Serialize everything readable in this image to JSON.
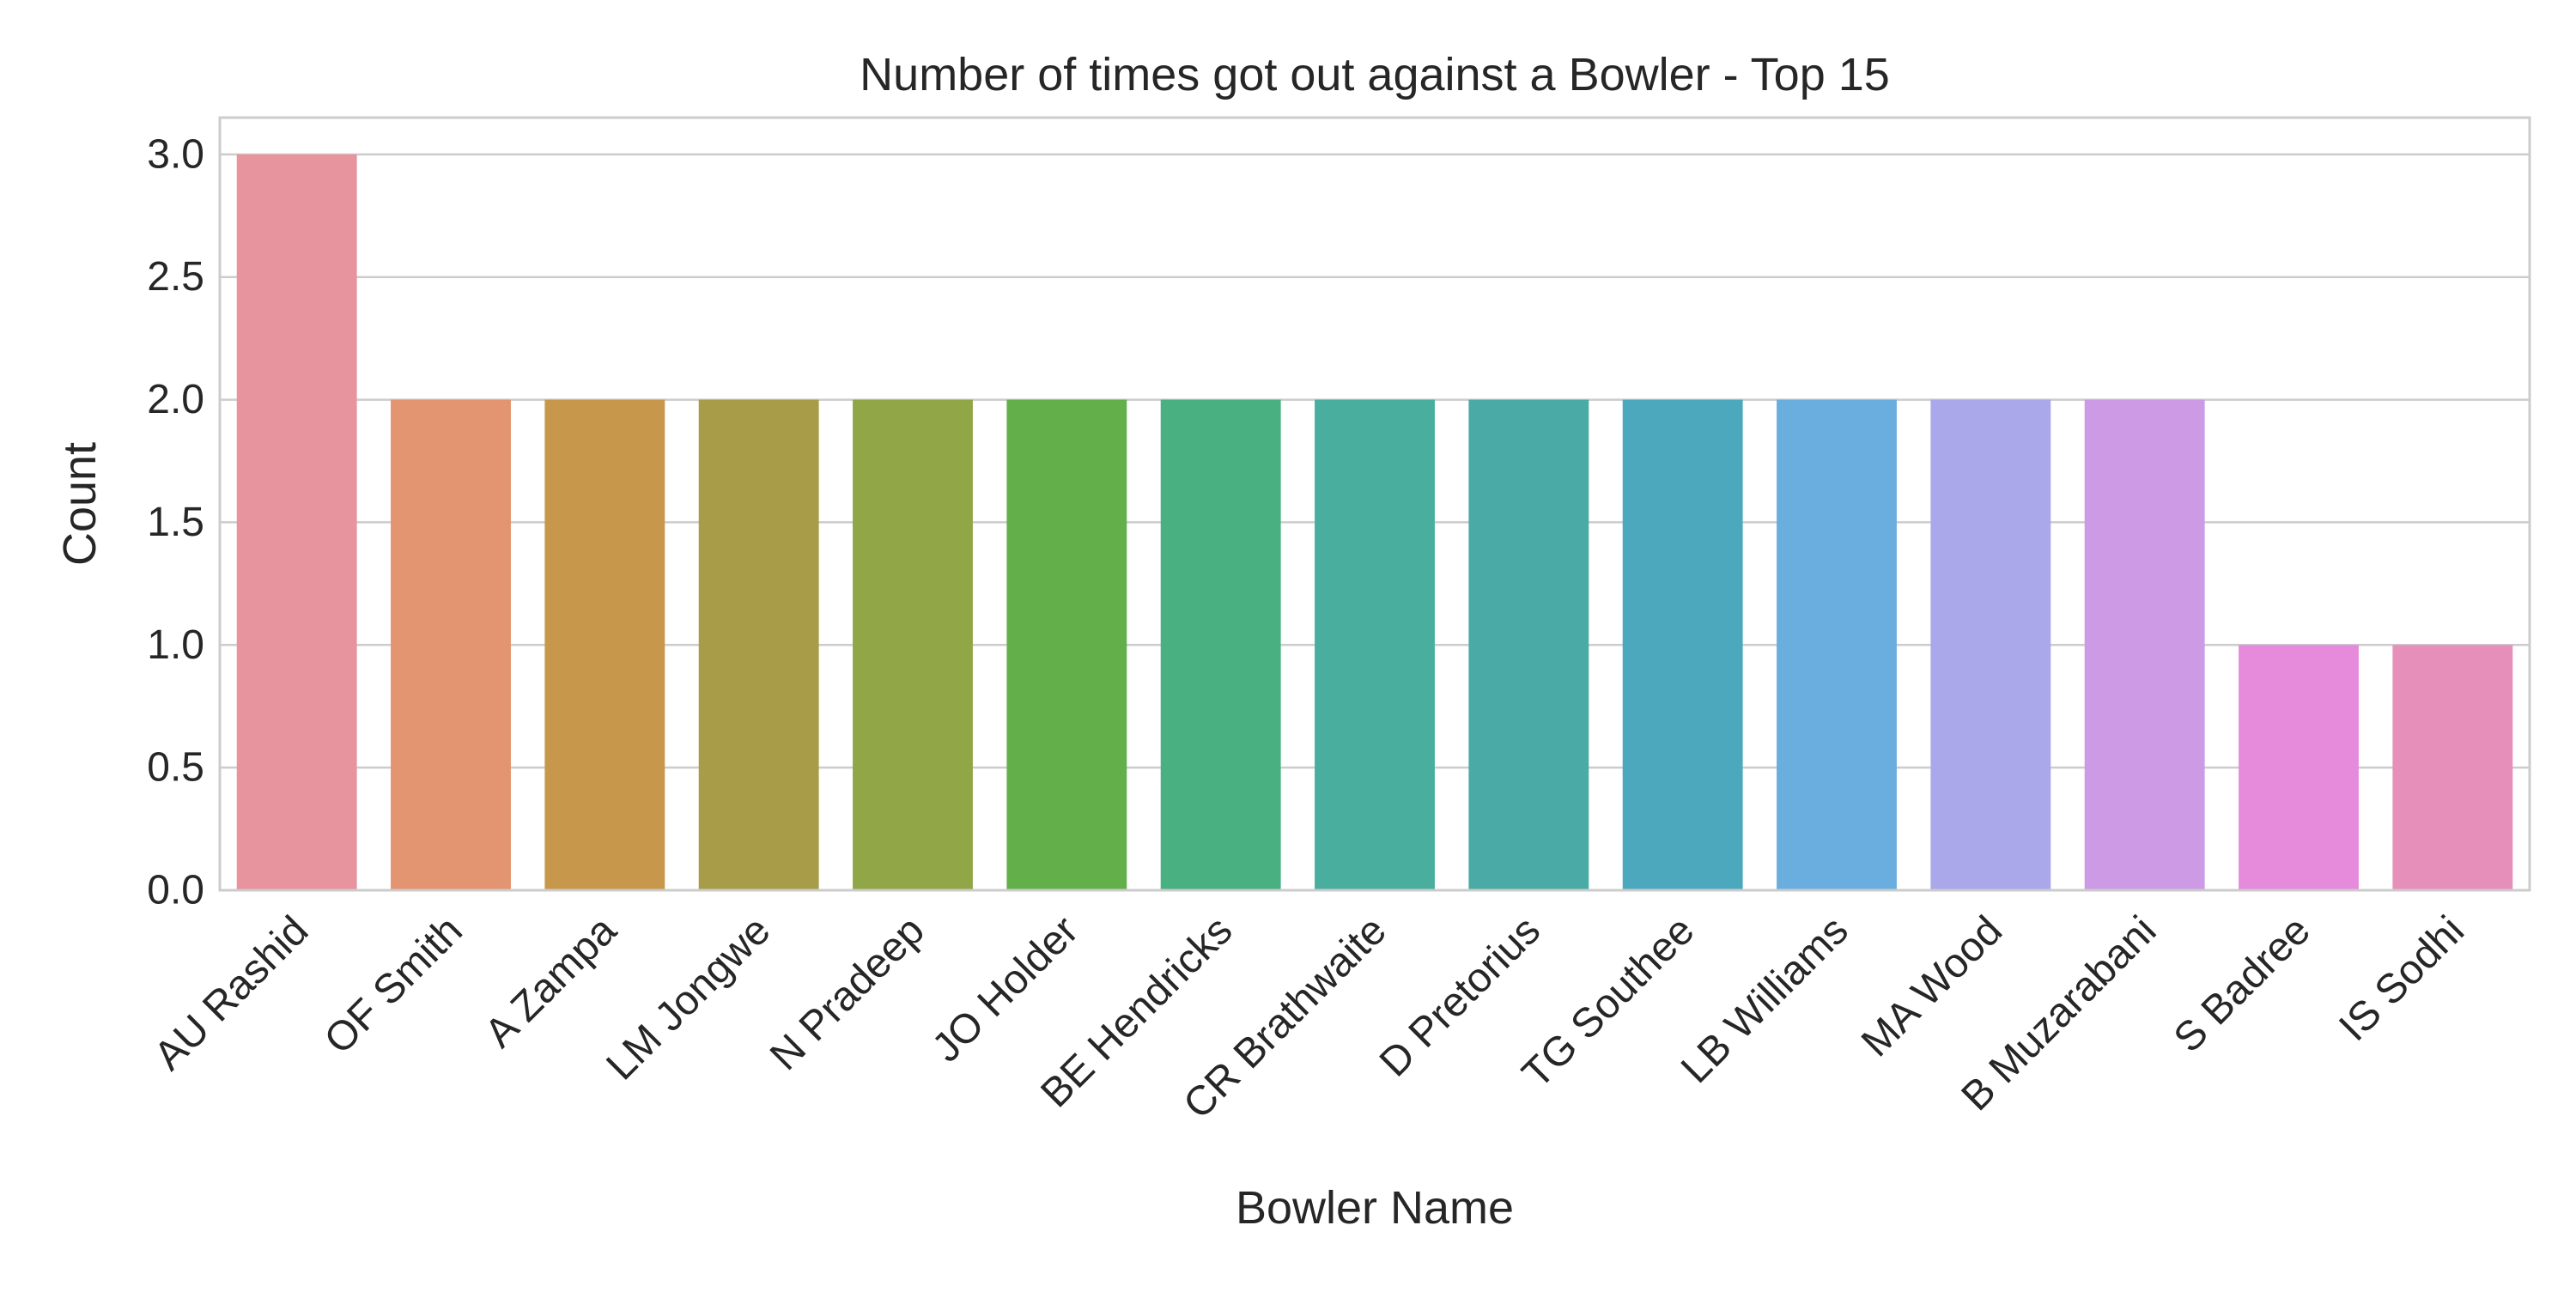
{
  "chart_data": {
    "type": "bar",
    "title": "Number of times got out against a Bowler - Top 15",
    "xlabel": "Bowler Name",
    "ylabel": "Count",
    "categories": [
      "AU Rashid",
      "OF Smith",
      "A Zampa",
      "LM Jongwe",
      "N Pradeep",
      "JO Holder",
      "BE Hendricks",
      "CR Brathwaite",
      "D Pretorius",
      "TG Southee",
      "LB Williams",
      "MA Wood",
      "B Muzarabani",
      "S Badree",
      "IS Sodhi"
    ],
    "values": [
      3,
      2,
      2,
      2,
      2,
      2,
      2,
      2,
      2,
      2,
      2,
      2,
      2,
      1,
      1
    ],
    "ylim": [
      0,
      3.15
    ],
    "yticks": [
      0.0,
      0.5,
      1.0,
      1.5,
      2.0,
      2.5,
      3.0
    ],
    "ytick_labels": [
      "0.0",
      "0.5",
      "1.0",
      "1.5",
      "2.0",
      "2.5",
      "3.0"
    ],
    "grid": true,
    "colors": [
      "#e8949f",
      "#e39470",
      "#c7984b",
      "#a99c48",
      "#91a646",
      "#63b04b",
      "#49b081",
      "#4aae9e",
      "#4aaba6",
      "#4ca8bd",
      "#6aaee0",
      "#aaa8ea",
      "#cd9ae6",
      "#e68bdc",
      "#e78fbb"
    ]
  }
}
